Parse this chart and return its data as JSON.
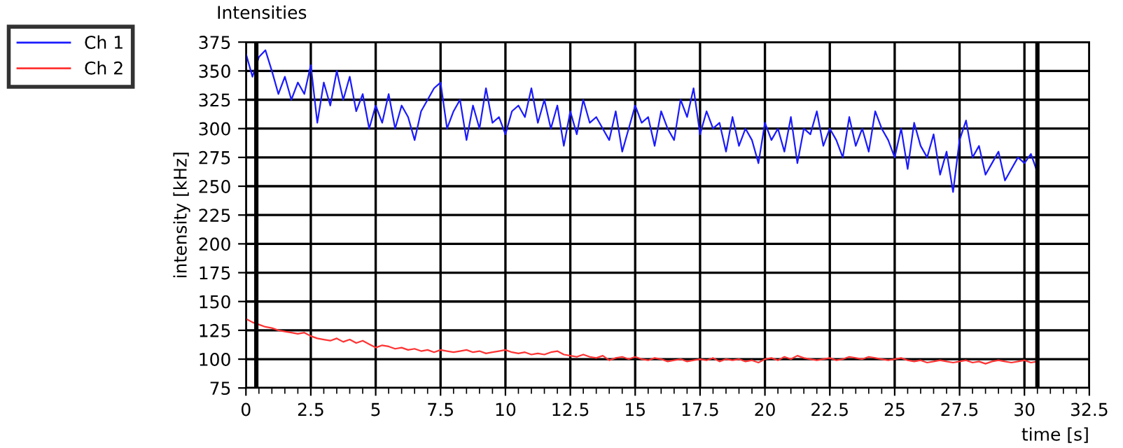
{
  "chart_data": {
    "type": "line",
    "title": "Intensities",
    "xlabel": "time [s]",
    "ylabel": "intensity [kHz]",
    "x": [
      0,
      0.25,
      0.5,
      0.75,
      1,
      1.25,
      1.5,
      1.75,
      2,
      2.25,
      2.5,
      2.75,
      3,
      3.25,
      3.5,
      3.75,
      4,
      4.25,
      4.5,
      4.75,
      5,
      5.25,
      5.5,
      5.75,
      6,
      6.25,
      6.5,
      6.75,
      7,
      7.25,
      7.5,
      7.75,
      8,
      8.25,
      8.5,
      8.75,
      9,
      9.25,
      9.5,
      9.75,
      10,
      10.25,
      10.5,
      10.75,
      11,
      11.25,
      11.5,
      11.75,
      12,
      12.25,
      12.5,
      12.75,
      13,
      13.25,
      13.5,
      13.75,
      14,
      14.25,
      14.5,
      14.75,
      15,
      15.25,
      15.5,
      15.75,
      16,
      16.25,
      16.5,
      16.75,
      17,
      17.25,
      17.5,
      17.75,
      18,
      18.25,
      18.5,
      18.75,
      19,
      19.25,
      19.5,
      19.75,
      20,
      20.25,
      20.5,
      20.75,
      21,
      21.25,
      21.5,
      21.75,
      22,
      22.25,
      22.5,
      22.75,
      23,
      23.25,
      23.5,
      23.75,
      24,
      24.25,
      24.5,
      24.75,
      25,
      25.25,
      25.5,
      25.75,
      26,
      26.25,
      26.5,
      26.75,
      27,
      27.25,
      27.5,
      27.75,
      28,
      28.25,
      28.5,
      28.75,
      29,
      29.25,
      29.5,
      29.75,
      30,
      30.25,
      30.5
    ],
    "series": [
      {
        "name": "Ch 1",
        "color": "#1a1aff",
        "values": [
          365,
          345,
          362,
          368,
          350,
          330,
          345,
          325,
          340,
          330,
          355,
          305,
          340,
          320,
          350,
          325,
          345,
          315,
          330,
          300,
          320,
          305,
          330,
          300,
          320,
          310,
          290,
          315,
          325,
          335,
          340,
          300,
          315,
          325,
          290,
          320,
          300,
          335,
          305,
          310,
          295,
          315,
          320,
          310,
          335,
          305,
          325,
          300,
          320,
          285,
          315,
          295,
          325,
          305,
          310,
          300,
          290,
          315,
          280,
          300,
          320,
          305,
          310,
          285,
          315,
          300,
          290,
          325,
          310,
          335,
          295,
          315,
          300,
          305,
          280,
          310,
          285,
          300,
          290,
          270,
          305,
          290,
          300,
          280,
          310,
          270,
          300,
          295,
          315,
          285,
          300,
          290,
          275,
          310,
          285,
          300,
          280,
          315,
          300,
          290,
          275,
          300,
          265,
          305,
          285,
          275,
          295,
          260,
          280,
          245,
          290,
          307,
          275,
          285,
          260,
          270,
          280,
          255,
          265,
          275,
          270,
          278,
          262
        ]
      },
      {
        "name": "Ch 2",
        "color": "#ff3333",
        "values": [
          135,
          132,
          130,
          128,
          127,
          125,
          124,
          123,
          122,
          123,
          120,
          118,
          117,
          116,
          118,
          115,
          117,
          114,
          116,
          113,
          110,
          112,
          111,
          109,
          110,
          108,
          109,
          107,
          108,
          106,
          108,
          107,
          106,
          107,
          108,
          106,
          107,
          105,
          106,
          107,
          108,
          106,
          105,
          106,
          104,
          105,
          104,
          106,
          107,
          104,
          103,
          102,
          104,
          102,
          101,
          103,
          99,
          101,
          102,
          100,
          102,
          100,
          99,
          101,
          100,
          98,
          99,
          100,
          98,
          99,
          100,
          99,
          101,
          98,
          100,
          99,
          100,
          98,
          99,
          97,
          100,
          101,
          99,
          102,
          100,
          103,
          101,
          100,
          99,
          100,
          101,
          99,
          100,
          102,
          101,
          100,
          102,
          101,
          100,
          99,
          100,
          101,
          99,
          98,
          99,
          97,
          98,
          99,
          98,
          97,
          98,
          99,
          97,
          98,
          96,
          98,
          99,
          98,
          97,
          98,
          99,
          97,
          98
        ]
      }
    ],
    "xlim": [
      0,
      32.5
    ],
    "xticks": [
      0,
      2.5,
      5,
      7.5,
      10,
      12.5,
      15,
      17.5,
      20,
      22.5,
      25,
      27.5,
      30,
      32.5
    ],
    "ylim": [
      75,
      375
    ],
    "yticks": [
      75,
      100,
      125,
      150,
      175,
      200,
      225,
      250,
      275,
      300,
      325,
      350,
      375
    ],
    "ref_lines": [
      {
        "axis": "x",
        "value": 0.4,
        "color": "#000000"
      },
      {
        "axis": "x",
        "value": 30.5,
        "color": "#000000"
      }
    ],
    "grid": true,
    "legend": "top left",
    "marker": "none",
    "line_style": "solid"
  }
}
